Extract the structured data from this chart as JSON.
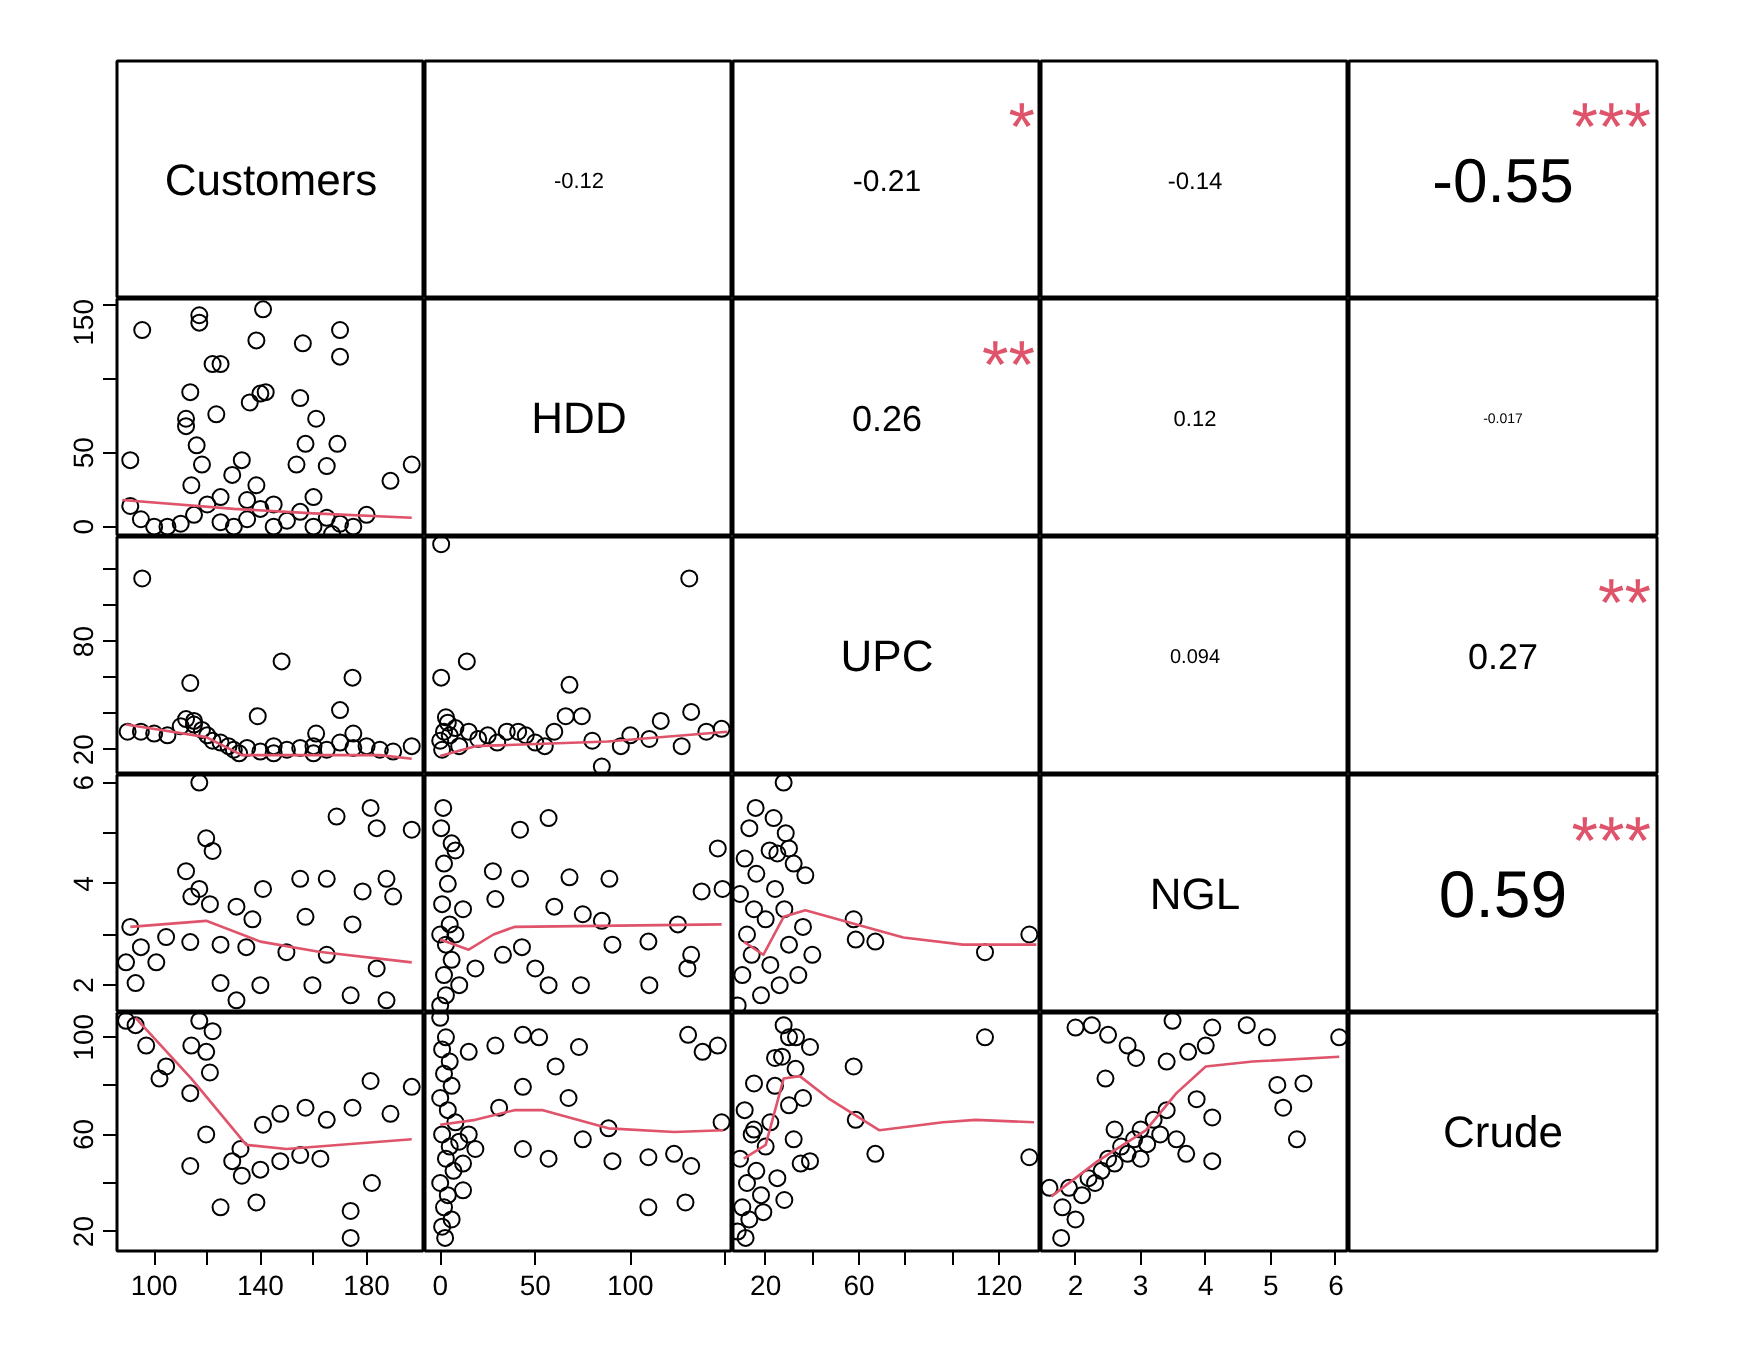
{
  "chart_data": [
    {
      "type": "other",
      "title": "Customers"
    },
    {
      "type": "other",
      "annotations": [
        "-0.12"
      ]
    },
    {
      "type": "other",
      "annotations": [
        "-0.21",
        "*"
      ]
    },
    {
      "type": "other",
      "annotations": [
        "-0.14"
      ]
    },
    {
      "type": "other",
      "annotations": [
        "-0.55",
        "***"
      ]
    },
    {
      "type": "scatter",
      "xlim": [
        86,
        202
      ],
      "ylim": [
        -7,
        154
      ],
      "yticks": [
        0,
        50,
        {
          "value": 100,
          "label": null
        },
        150
      ],
      "tick_labels": "y",
      "series": [
        {
          "type": "scatter",
          "marker": "circle",
          "color": "#000000",
          "x": [
            95.5,
            91,
            91,
            117,
            117,
            122,
            125,
            113.6,
            112,
            112,
            116,
            123.4,
            118,
            114,
            141,
            138.5,
            142,
            140,
            136,
            133,
            129.4,
            138.5,
            156,
            170,
            170,
            155,
            161,
            157,
            169,
            165,
            153.6,
            160,
            167,
            189,
            197,
            95,
            100,
            105,
            110,
            115,
            120,
            125,
            130,
            135,
            140,
            145,
            150,
            155,
            160,
            165,
            170,
            175,
            180,
            125,
            135,
            145
          ],
          "values": [
            133,
            45,
            14,
            143,
            138,
            110,
            110,
            91,
            73,
            68,
            55,
            76,
            42,
            28,
            147,
            126,
            91,
            90,
            84,
            45,
            35,
            28,
            124,
            133,
            115,
            87,
            73,
            56,
            56,
            41,
            42,
            20,
            -5,
            31,
            42,
            5,
            0,
            0,
            2,
            8,
            15,
            3,
            0,
            5,
            12,
            0,
            4,
            10,
            0,
            6,
            2,
            0,
            8,
            20,
            18,
            15
          ]
        },
        {
          "type": "line",
          "color": "#df536b",
          "x": [
            88,
            130,
            160,
            197
          ],
          "values": [
            18,
            12,
            9,
            6
          ]
        }
      ]
    },
    {
      "type": "other",
      "title": "HDD"
    },
    {
      "type": "other",
      "annotations": [
        "0.26",
        "**"
      ]
    },
    {
      "type": "other",
      "annotations": [
        "0.12"
      ]
    },
    {
      "type": "other",
      "annotations": [
        "-0.017"
      ]
    },
    {
      "type": "scatter",
      "xlim": [
        86,
        202
      ],
      "ylim": [
        6,
        138
      ],
      "yticks": [
        20,
        {
          "value": 40,
          "label": null
        },
        {
          "value": 60,
          "label": null
        },
        80,
        {
          "value": 100,
          "label": null
        },
        {
          "value": 120,
          "label": null
        }
      ],
      "tick_labels": "y",
      "series": [
        {
          "type": "scatter",
          "marker": "circle",
          "color": "#000000",
          "x": [
            95.5,
            148,
            113.6,
            174.7,
            139,
            170,
            161,
            175,
            90,
            95,
            100,
            105,
            110,
            115,
            118,
            120,
            122,
            125,
            128,
            130,
            135,
            140,
            145,
            150,
            155,
            160,
            165,
            170,
            175,
            180,
            185,
            190,
            197,
            115,
            112,
            132,
            145,
            160
          ],
          "values": [
            115,
            69,
            57,
            60,
            38.6,
            42,
            29,
            29,
            30,
            30,
            29,
            28,
            33,
            34,
            31,
            28,
            25,
            24,
            22,
            20,
            21,
            19,
            22,
            20,
            21,
            22,
            20,
            24,
            21,
            22,
            20,
            19,
            22,
            36,
            37,
            18,
            18,
            18
          ]
        },
        {
          "type": "line",
          "color": "#df536b",
          "x": [
            89.4,
            119.6,
            133,
            185,
            197
          ],
          "values": [
            34,
            27,
            17,
            17,
            15
          ]
        }
      ]
    },
    {
      "type": "scatter",
      "xlim": [
        -8,
        154
      ],
      "ylim": [
        6,
        138
      ],
      "tick_labels": false,
      "series": [
        {
          "type": "scatter",
          "marker": "circle",
          "color": "#000000",
          "x": [
            0.5,
            131,
            14,
            0.5,
            68,
            66,
            74.5,
            116,
            132,
            148,
            127,
            85,
            41,
            0,
            2,
            4,
            1,
            5,
            8,
            3,
            10,
            15,
            20,
            25,
            30,
            35,
            45,
            50,
            55,
            60,
            80,
            95,
            100,
            110,
            140
          ],
          "values": [
            134,
            115,
            69,
            60,
            56,
            38.6,
            38.6,
            36,
            41,
            31.6,
            22,
            10.7,
            30,
            25,
            30,
            35,
            20,
            28,
            32,
            38,
            22,
            30,
            26,
            28,
            24,
            30,
            28,
            24,
            22,
            30,
            25,
            22,
            28,
            26,
            30
          ]
        },
        {
          "type": "line",
          "color": "#df536b",
          "x": [
            0,
            18.5,
            88,
            151
          ],
          "values": [
            16.5,
            22,
            24.6,
            30
          ]
        }
      ]
    },
    {
      "type": "other",
      "title": "UPC"
    },
    {
      "type": "other",
      "annotations": [
        "0.094"
      ]
    },
    {
      "type": "other",
      "annotations": [
        "0.27",
        "**"
      ]
    },
    {
      "type": "scatter",
      "xlim": [
        86,
        202
      ],
      "ylim": [
        1.45,
        6.15
      ],
      "yticks": [
        2,
        {
          "value": 3,
          "label": null
        },
        4,
        {
          "value": 5,
          "label": null
        },
        6
      ],
      "tick_labels": "y",
      "series": [
        {
          "type": "scatter",
          "marker": "circle",
          "color": "#000000",
          "x": [
            117,
            168.7,
            181.5,
            183.8,
            197,
            119.6,
            122,
            112,
            117,
            141,
            155,
            165,
            178.5,
            187.5,
            190,
            131,
            137,
            157,
            174.7,
            91,
            104.5,
            113.6,
            125,
            95,
            89.4,
            100.8,
            93,
            125,
            140,
            131,
            159.6,
            174,
            187.5,
            183.8,
            165,
            149.8,
            134.7,
            114,
            121
          ],
          "values": [
            6.0,
            5.33,
            5.5,
            5.1,
            5.07,
            4.9,
            4.65,
            4.25,
            3.9,
            3.9,
            4.1,
            4.1,
            3.85,
            4.1,
            3.75,
            3.55,
            3.3,
            3.35,
            3.2,
            3.15,
            2.95,
            2.85,
            2.8,
            2.75,
            2.45,
            2.45,
            2.04,
            2.04,
            2.0,
            1.7,
            2.0,
            1.8,
            1.7,
            2.33,
            2.6,
            2.65,
            2.75,
            3.75,
            3.6
          ]
        },
        {
          "type": "line",
          "color": "#df536b",
          "x": [
            91,
            119.6,
            140,
            162,
            197
          ],
          "values": [
            3.15,
            3.27,
            2.86,
            2.66,
            2.45
          ]
        }
      ]
    },
    {
      "type": "scatter",
      "xlim": [
        -8,
        154
      ],
      "ylim": [
        1.45,
        6.15
      ],
      "tick_labels": false,
      "series": [
        {
          "type": "scatter",
          "marker": "circle",
          "color": "#000000",
          "x": [
            1.6,
            0.5,
            57,
            42,
            8,
            146,
            27.7,
            42,
            68,
            89,
            137.5,
            148.5,
            29,
            60,
            75,
            85,
            125,
            109.5,
            90.6,
            132,
            130,
            57,
            74,
            110,
            43,
            33,
            50,
            18.5,
            0,
            2,
            3,
            5,
            1,
            4,
            6,
            8,
            2,
            0,
            10,
            12,
            3,
            6
          ],
          "values": [
            5.5,
            5.1,
            5.3,
            5.07,
            4.66,
            4.7,
            4.25,
            4.1,
            4.13,
            4.1,
            3.85,
            3.9,
            3.7,
            3.55,
            3.4,
            3.27,
            3.2,
            2.86,
            2.8,
            2.6,
            2.33,
            2.0,
            2.0,
            2.0,
            2.75,
            2.6,
            2.33,
            2.33,
            1.6,
            2.2,
            2.8,
            3.2,
            3.6,
            4.0,
            2.5,
            3.0,
            4.4,
            3.0,
            2.0,
            3.5,
            1.8,
            4.8
          ]
        },
        {
          "type": "line",
          "color": "#df536b",
          "x": [
            0,
            15,
            28,
            39,
            148
          ],
          "values": [
            2.9,
            2.7,
            3.0,
            3.15,
            3.2
          ]
        }
      ]
    },
    {
      "type": "scatter",
      "xlim": [
        6,
        138
      ],
      "ylim": [
        1.45,
        6.15
      ],
      "tick_labels": false,
      "series": [
        {
          "type": "scatter",
          "marker": "circle",
          "color": "#000000",
          "x": [
            27.7,
            15.7,
            23.4,
            13,
            28.6,
            21.7,
            30,
            37,
            57.7,
            58.6,
            67,
            114,
            133,
            40,
            36,
            8,
            10,
            12,
            9,
            14,
            16,
            18,
            20,
            22,
            24,
            26,
            28,
            30,
            32,
            34,
            15,
            25,
            11
          ],
          "values": [
            6.0,
            5.5,
            5.3,
            5.1,
            5.0,
            4.66,
            4.7,
            4.17,
            3.3,
            2.9,
            2.86,
            2.65,
            3.0,
            2.6,
            3.15,
            1.6,
            2.2,
            3.0,
            3.8,
            2.6,
            4.2,
            1.8,
            3.3,
            2.4,
            3.9,
            2.0,
            3.5,
            2.8,
            4.4,
            2.2,
            3.5,
            4.6,
            4.5
          ]
        },
        {
          "type": "line",
          "color": "#df536b",
          "x": [
            10.6,
            19,
            27.7,
            37,
            79,
            104.5,
            136
          ],
          "values": [
            2.86,
            2.6,
            3.35,
            3.48,
            2.94,
            2.8,
            2.8
          ]
        }
      ]
    },
    {
      "type": "other",
      "title": "NGL"
    },
    {
      "type": "other",
      "annotations": [
        "0.59",
        "***"
      ]
    },
    {
      "type": "scatter",
      "xlim": [
        86,
        202
      ],
      "ylim": [
        12,
        110
      ],
      "xticks": [
        100,
        {
          "value": 120,
          "label": null
        },
        140,
        {
          "value": 160,
          "label": null
        },
        180
      ],
      "yticks": [
        20,
        {
          "value": 40,
          "label": null
        },
        60,
        {
          "value": 80,
          "label": null
        },
        100
      ],
      "series": [
        {
          "type": "scatter",
          "marker": "circle",
          "color": "#000000",
          "x": [
            89.4,
            93,
            97,
            102,
            104.5,
            113.6,
            117,
            122,
            119.6,
            114,
            121,
            119.6,
            113.6,
            125,
            138.5,
            132.5,
            133,
            140,
            141,
            147.5,
            157,
            155,
            165,
            174.7,
            181.5,
            197,
            189,
            182,
            174,
            174,
            162.6,
            147.5,
            129.4
          ],
          "values": [
            106.8,
            105,
            96.6,
            83,
            88,
            77,
            106.8,
            102.5,
            94,
            96.6,
            85.5,
            60,
            47,
            30,
            32,
            54,
            43,
            45.5,
            64,
            68.5,
            71,
            51.5,
            66,
            71,
            82,
            79.6,
            68.5,
            40,
            28.5,
            17.4,
            50,
            49,
            49
          ]
        },
        {
          "type": "line",
          "color": "#df536b",
          "x": [
            93,
            114,
            134.7,
            149.8,
            197
          ],
          "values": [
            108,
            83,
            55.7,
            54,
            58
          ]
        }
      ]
    },
    {
      "type": "scatter",
      "xlim": [
        -8,
        154
      ],
      "ylim": [
        12,
        110
      ],
      "xticks": [
        0,
        50,
        100,
        {
          "value": 150,
          "label": null
        }
      ],
      "tick_labels": "x",
      "series": [
        {
          "type": "scatter",
          "marker": "circle",
          "color": "#000000",
          "x": [
            0,
            3,
            1,
            5,
            2,
            6,
            0,
            4,
            8,
            1,
            5,
            3,
            7,
            0,
            4,
            2,
            6,
            1,
            10,
            12,
            15,
            29,
            43.5,
            52,
            15,
            43.5,
            67.5,
            73,
            60.7,
            130.4,
            138,
            146,
            148,
            31,
            75,
            88.5,
            90.6,
            109.5,
            123,
            132,
            109.5,
            129,
            57,
            43.5,
            18.5,
            12,
            2.6
          ],
          "values": [
            108,
            100,
            95,
            90,
            85,
            80,
            75,
            70,
            65,
            60,
            55,
            50,
            45,
            40,
            35,
            30,
            25,
            22,
            57,
            48,
            60,
            96.6,
            101,
            100,
            94,
            79.6,
            75,
            96,
            88,
            101,
            94,
            96.6,
            65,
            71,
            58,
            62.5,
            49,
            50.6,
            52,
            47,
            30,
            32,
            50,
            54,
            54,
            37,
            17.4
          ]
        },
        {
          "type": "line",
          "color": "#df536b",
          "x": [
            0,
            18.5,
            39,
            54,
            88.5,
            123,
            149
          ],
          "values": [
            64,
            66,
            70,
            70,
            62.5,
            61,
            61.7
          ]
        }
      ]
    },
    {
      "type": "scatter",
      "xlim": [
        6,
        138
      ],
      "ylim": [
        12,
        110
      ],
      "xticks": [
        20,
        {
          "value": 40,
          "label": null
        },
        60,
        {
          "value": 80,
          "label": null
        },
        {
          "value": 100,
          "label": null
        },
        120
      ],
      "tick_labels": "x",
      "series": [
        {
          "type": "scatter",
          "marker": "circle",
          "color": "#000000",
          "x": [
            27.7,
            30,
            39,
            24,
            32.8,
            114,
            57.7,
            58.6,
            67,
            133,
            15,
            36,
            39,
            8,
            10,
            12,
            9,
            14,
            11,
            16,
            18,
            20,
            22,
            25,
            28,
            30,
            32,
            35,
            13,
            19,
            24,
            27,
            33,
            15,
            11.4
          ],
          "values": [
            105,
            100,
            96,
            91.5,
            87,
            100,
            88,
            66,
            52,
            50.6,
            81,
            75,
            49,
            20,
            30,
            40,
            50,
            60,
            70,
            45,
            35,
            55,
            65,
            42,
            33,
            72,
            58,
            48,
            25,
            28,
            80,
            92,
            100,
            62,
            17.4
          ]
        },
        {
          "type": "line",
          "color": "#df536b",
          "x": [
            10.6,
            20,
            27.7,
            34.6,
            47.4,
            68.8,
            96,
            110,
            135
          ],
          "values": [
            50,
            55.7,
            83,
            84,
            74.5,
            61.7,
            65,
            66,
            65
          ]
        }
      ]
    },
    {
      "type": "scatter",
      "xlim": [
        1.47,
        6.2
      ],
      "ylim": [
        12,
        110
      ],
      "xticks": [
        2,
        3,
        4,
        5,
        6
      ],
      "tick_labels": "x",
      "series": [
        {
          "type": "scatter",
          "marker": "circle",
          "color": "#000000",
          "x": [
            2.0,
            2.25,
            2.5,
            2.8,
            3.49,
            2.93,
            3.4,
            3.73,
            4.0,
            4.1,
            4.63,
            4.94,
            6.05,
            2.46,
            5.1,
            5.5,
            5.19,
            5.4,
            3.86,
            4.1,
            4.1,
            3.55,
            3.7,
            1.8,
            1.9,
            2.1,
            2.2,
            2.4,
            2.5,
            2.6,
            2.7,
            2.8,
            2.9,
            3.0,
            3.1,
            3.2,
            3.3,
            3.4,
            2.3,
            2.0,
            1.6,
            2.6,
            3.0,
            1.78
          ],
          "values": [
            104,
            105,
            101,
            96.6,
            106.8,
            91.5,
            90,
            94,
            96.6,
            104,
            105,
            100,
            100,
            83,
            80.4,
            81,
            71,
            58,
            74.5,
            67,
            49,
            58,
            52,
            30,
            38,
            35,
            42,
            45,
            50,
            48,
            55,
            52,
            58,
            62,
            56,
            66,
            60,
            70,
            40,
            25,
            38,
            62,
            50,
            17.4
          ]
        },
        {
          "type": "line",
          "color": "#df536b",
          "x": [
            1.63,
            2.34,
            3.08,
            3.55,
            4.0,
            4.72,
            6.05
          ],
          "values": [
            34.5,
            49,
            61.7,
            77,
            88,
            90,
            92
          ]
        }
      ]
    },
    {
      "type": "other",
      "title": "Crude"
    }
  ]
}
